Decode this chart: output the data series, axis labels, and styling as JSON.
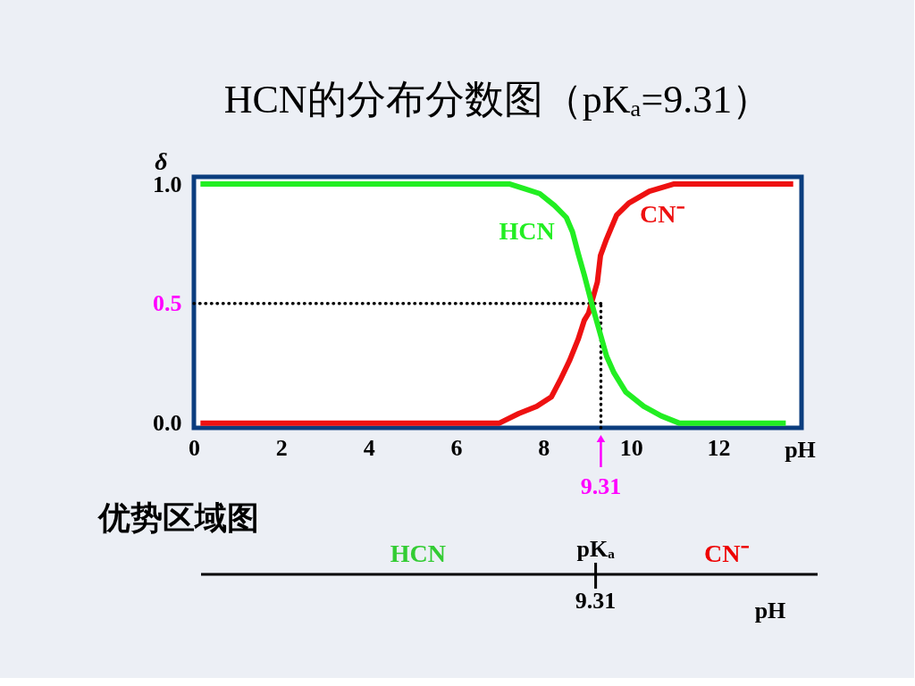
{
  "chart_data": [
    {
      "type": "line",
      "title": "HCN的分布分数图（pKₐ=9.31）",
      "xlabel": "pH",
      "ylabel": "δ",
      "xlim": [
        0,
        13.9
      ],
      "ylim": [
        -0.02,
        1.03
      ],
      "xticks": [
        0,
        2,
        4,
        6,
        8,
        10,
        12
      ],
      "yticks": [
        {
          "value": 0,
          "label": "0.0"
        },
        {
          "value": 0.5,
          "label": "0.5"
        },
        {
          "value": 1,
          "label": "1.0"
        }
      ],
      "grid": false,
      "marker": "none",
      "line_style": "solid",
      "series": [
        {
          "name": "CN⁻",
          "color": "#ee1111",
          "x": [
            0.15,
            6.92,
            6.99,
            7.43,
            7.84,
            8.18,
            8.38,
            8.59,
            8.79,
            8.93,
            9.03,
            9.23,
            9.3,
            9.44,
            9.67,
            9.95,
            10.42,
            10.97,
            13.71
          ],
          "values": [
            0,
            0,
            0,
            0.04,
            0.07,
            0.11,
            0.18,
            0.26,
            0.35,
            0.43,
            0.46,
            0.59,
            0.7,
            0.77,
            0.87,
            0.92,
            0.97,
            1,
            1
          ]
        },
        {
          "name": "HCN",
          "color": "#22ee22",
          "x": [
            0.15,
            7.23,
            7.57,
            7.91,
            8.25,
            8.52,
            8.66,
            8.79,
            8.93,
            9.1,
            9.27,
            9.44,
            9.61,
            9.88,
            10.29,
            10.69,
            11.1,
            13.54
          ],
          "values": [
            1,
            1,
            0.98,
            0.96,
            0.91,
            0.86,
            0.8,
            0.71,
            0.62,
            0.5,
            0.39,
            0.28,
            0.21,
            0.13,
            0.07,
            0.03,
            0,
            0
          ]
        }
      ],
      "ref_lines": [
        {
          "axis": "y",
          "value": 0.5,
          "line_style": "dotted",
          "color": "#000000"
        },
        {
          "axis": "x",
          "value": 9.31,
          "label": "9.31",
          "line_style": "dotted",
          "color": "#000000"
        }
      ]
    },
    {
      "type": "other",
      "title": "优势区域图",
      "categories": [
        "HCN",
        "CN⁻"
      ],
      "colors": [
        "#33cc33",
        "#ee0000"
      ],
      "annotations": [
        "pKₐ",
        "9.31"
      ],
      "xlabel": "pH"
    }
  ]
}
